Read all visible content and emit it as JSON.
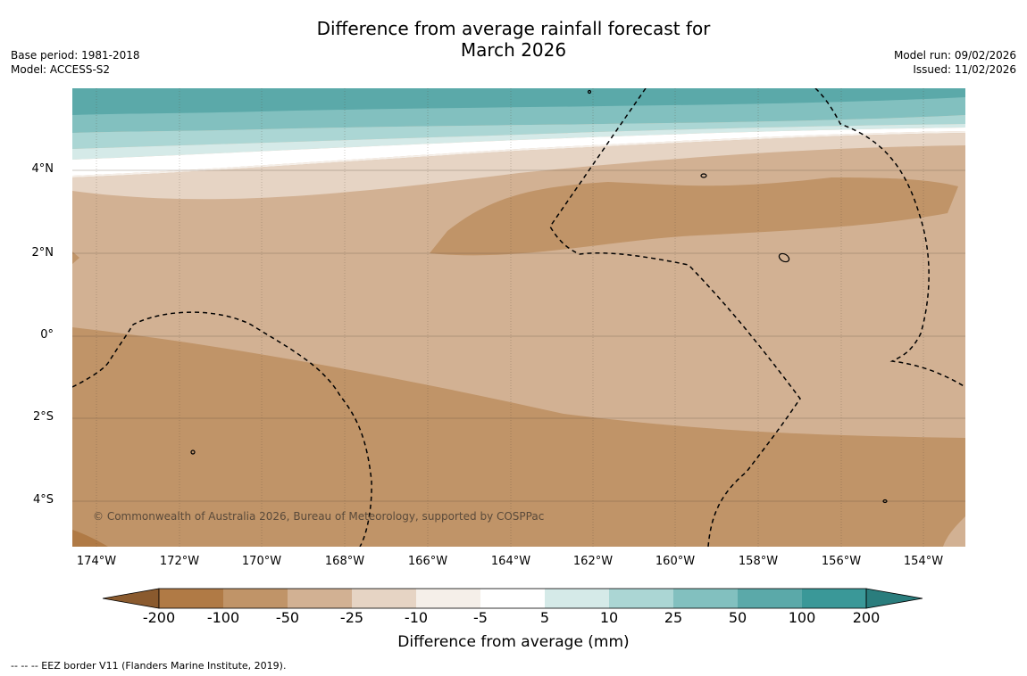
{
  "title": {
    "line1": "Difference from average rainfall forecast for",
    "line2": "March 2026"
  },
  "meta_left": {
    "base_period": "Base period: 1981-2018",
    "model": "Model: ACCESS-S2"
  },
  "meta_right": {
    "model_run": "Model run: 09/02/2026",
    "issued": "Issued: 11/02/2026"
  },
  "lat_labels": [
    "4°N",
    "2°N",
    "0°",
    "2°S",
    "4°S"
  ],
  "lon_labels": [
    "174°W",
    "172°W",
    "170°W",
    "168°W",
    "166°W",
    "164°W",
    "162°W",
    "160°W",
    "158°W",
    "156°W",
    "154°W"
  ],
  "copyright": "© Commonwealth of Australia 2026, Bureau of Meteorology, supported by COSPPac",
  "colorbar": {
    "ticks": [
      "-200",
      "-100",
      "-50",
      "-25",
      "-10",
      "-5",
      "5",
      "10",
      "25",
      "50",
      "100",
      "200"
    ],
    "colors": [
      "#8a5a2e",
      "#b07a45",
      "#c09468",
      "#d2b193",
      "#e6d4c4",
      "#f5efe9",
      "#ffffff",
      "#d5eae8",
      "#abd6d4",
      "#82c0bf",
      "#5ba9a9",
      "#3a9898",
      "#2a7d7d"
    ],
    "label": "Difference from average (mm)"
  },
  "footnote": "--  --  -- EEZ border V11 (Flanders Marine Institute, 2019)."
}
